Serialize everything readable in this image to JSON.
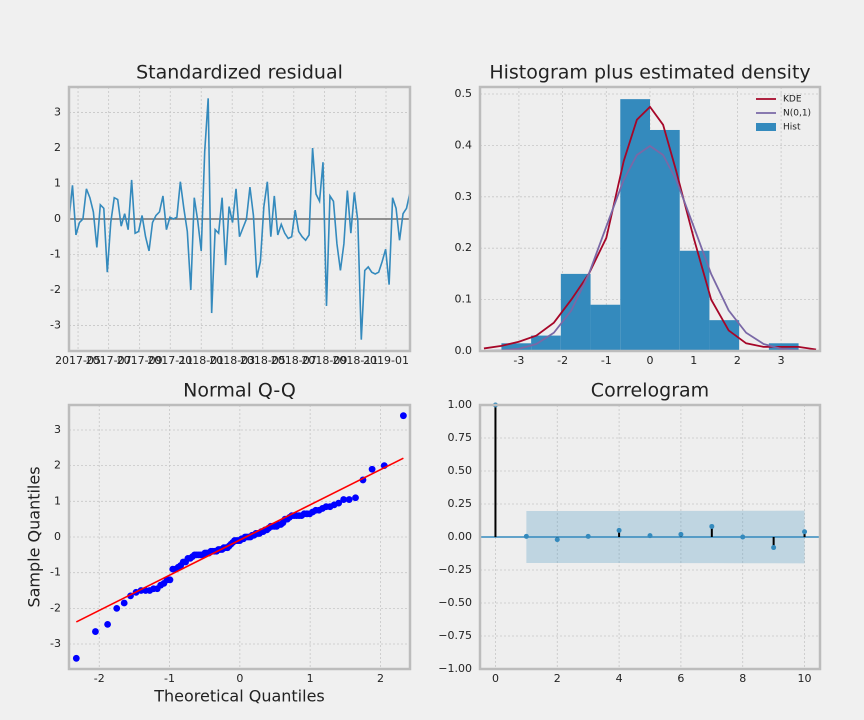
{
  "chart_data": [
    {
      "type": "line",
      "title": "Standardized residual",
      "color": "#348abd",
      "values": [
        0,
        0.95,
        -0.45,
        -0.1,
        0,
        0.85,
        0.6,
        0.2,
        -0.8,
        0.4,
        0.3,
        -1.5,
        -0.1,
        0.6,
        0.55,
        -0.2,
        0.15,
        -0.3,
        1.1,
        -0.4,
        -0.35,
        0.1,
        -0.5,
        -0.9,
        -0.1,
        0.1,
        0.2,
        0.65,
        -0.3,
        0.05,
        0,
        0.05,
        1.05,
        0.3,
        -0.35,
        -2.0,
        0.6,
        -0.05,
        -0.9,
        1.9,
        3.4,
        -2.65,
        -0.3,
        -0.4,
        0.6,
        -1.3,
        0.35,
        -0.1,
        0.85,
        -0.5,
        -0.25,
        0,
        0.9,
        0.1,
        -1.65,
        -1.2,
        0.35,
        1.05,
        -0.5,
        0.65,
        -0.45,
        -0.15,
        -0.4,
        -0.55,
        -0.5,
        0.25,
        -0.35,
        -0.5,
        -0.6,
        -0.45,
        2.0,
        0.7,
        0.5,
        1.6,
        -2.45,
        0.65,
        0.5,
        -0.7,
        -1.45,
        -0.7,
        0.8,
        -0.4,
        0.75,
        -0.05,
        -3.4,
        -1.45,
        -1.35,
        -1.5,
        -1.55,
        -1.5,
        -1.2,
        -0.85,
        -1.85,
        0.6,
        0.3,
        -0.6,
        0.15,
        0.3,
        0.75
      ],
      "xlim": [
        0,
        98
      ],
      "xticks": [
        {
          "value": 2.6,
          "label": "2017-05"
        },
        {
          "value": 11.4,
          "label": "2017-07"
        },
        {
          "value": 20.3,
          "label": "2017-09"
        },
        {
          "value": 29.1,
          "label": "2017-11"
        },
        {
          "value": 38,
          "label": "2018-01"
        },
        {
          "value": 46.9,
          "label": "2018-03"
        },
        {
          "value": 55.7,
          "label": "2018-05"
        },
        {
          "value": 64.6,
          "label": "2018-07"
        },
        {
          "value": 73.4,
          "label": "2018-09"
        },
        {
          "value": 82.3,
          "label": "2018-11"
        },
        {
          "value": 91.1,
          "label": "2019-01"
        }
      ],
      "ylim": [
        -3.72,
        3.72
      ],
      "yticks": [
        -3,
        -2,
        -1,
        0,
        1,
        2,
        3
      ],
      "grid": true
    },
    {
      "type": "histogram",
      "title": "Histogram plus estimated density",
      "name": "Hist",
      "color": "#348abd",
      "bins": [
        -3.4,
        -2.72,
        -2.04,
        -1.36,
        -0.68,
        0,
        0.68,
        1.36,
        2.04,
        2.72,
        3.4
      ],
      "values": [
        0.015,
        0.03,
        0.15,
        0.09,
        0.49,
        0.43,
        0.195,
        0.06,
        0,
        0.015
      ],
      "lines": {
        "x": [
          -3.8,
          -3.4,
          -3.0,
          -2.6,
          -2.2,
          -1.8,
          -1.4,
          -1.0,
          -0.6,
          -0.3,
          0,
          0.3,
          0.6,
          1.0,
          1.4,
          1.8,
          2.2,
          2.6,
          3.0,
          3.4,
          3.8
        ],
        "series": [
          {
            "name": "KDE",
            "color": "#a60628",
            "values": [
              0.005,
              0.01,
              0.018,
              0.03,
              0.055,
              0.1,
              0.15,
              0.22,
              0.37,
              0.45,
              0.475,
              0.44,
              0.35,
              0.22,
              0.1,
              0.04,
              0.015,
              0.008,
              0.008,
              0.008,
              0.003
            ]
          },
          {
            "name": "N(0,1)",
            "color": "#7a68a6",
            "values": [
              0.0003,
              0.0012,
              0.0044,
              0.0136,
              0.0355,
              0.079,
              0.1497,
              0.242,
              0.3332,
              0.3814,
              0.3989,
              0.3814,
              0.3332,
              0.242,
              0.1497,
              0.079,
              0.0355,
              0.0136,
              0.0044,
              0.0012,
              0.0003
            ]
          }
        ]
      },
      "legend": "upper right",
      "xlim": [
        -3.89,
        3.89
      ],
      "xticks": [
        -3,
        -2,
        -1,
        0,
        1,
        2,
        3
      ],
      "ylim": [
        0,
        0.5136
      ],
      "yticks": [
        {
          "value": 0,
          "label": "0.0"
        },
        {
          "value": 0.1,
          "label": "0.1"
        },
        {
          "value": 0.2,
          "label": "0.2"
        },
        {
          "value": 0.3,
          "label": "0.3"
        },
        {
          "value": 0.4,
          "label": "0.4"
        },
        {
          "value": 0.5,
          "label": "0.5"
        }
      ],
      "grid": true
    },
    {
      "type": "scatter",
      "title": "Normal Q-Q",
      "x_label": "Theoretical Quantiles",
      "y_label": "Sample Quantiles",
      "color": "#0000ff",
      "x": [
        -2.326,
        -2.054,
        -1.881,
        -1.751,
        -1.645,
        -1.555,
        -1.476,
        -1.405,
        -1.341,
        -1.282,
        -1.227,
        -1.175,
        -1.126,
        -1.08,
        -1.036,
        -0.994,
        -0.954,
        -0.915,
        -0.878,
        -0.842,
        -0.806,
        -0.772,
        -0.739,
        -0.706,
        -0.674,
        -0.643,
        -0.613,
        -0.583,
        -0.553,
        -0.524,
        -0.496,
        -0.468,
        -0.44,
        -0.412,
        -0.385,
        -0.358,
        -0.332,
        -0.305,
        -0.279,
        -0.253,
        -0.228,
        -0.202,
        -0.176,
        -0.151,
        -0.126,
        -0.1,
        -0.075,
        -0.05,
        -0.025,
        0,
        0.025,
        0.05,
        0.075,
        0.1,
        0.126,
        0.151,
        0.176,
        0.202,
        0.228,
        0.253,
        0.279,
        0.305,
        0.332,
        0.358,
        0.385,
        0.412,
        0.44,
        0.468,
        0.496,
        0.524,
        0.553,
        0.583,
        0.613,
        0.643,
        0.674,
        0.706,
        0.739,
        0.772,
        0.806,
        0.842,
        0.878,
        0.915,
        0.954,
        0.994,
        1.036,
        1.08,
        1.126,
        1.175,
        1.227,
        1.282,
        1.341,
        1.405,
        1.476,
        1.555,
        1.645,
        1.751,
        1.881,
        2.054,
        2.326
      ],
      "values": [
        -3.4,
        -2.65,
        -2.45,
        -2.0,
        -1.85,
        -1.65,
        -1.55,
        -1.5,
        -1.5,
        -1.5,
        -1.45,
        -1.45,
        -1.35,
        -1.3,
        -1.2,
        -1.2,
        -0.9,
        -0.9,
        -0.85,
        -0.8,
        -0.7,
        -0.7,
        -0.6,
        -0.6,
        -0.55,
        -0.5,
        -0.5,
        -0.5,
        -0.5,
        -0.5,
        -0.45,
        -0.45,
        -0.45,
        -0.4,
        -0.4,
        -0.4,
        -0.4,
        -0.35,
        -0.35,
        -0.35,
        -0.3,
        -0.3,
        -0.3,
        -0.25,
        -0.2,
        -0.15,
        -0.1,
        -0.1,
        -0.1,
        -0.1,
        -0.05,
        -0.05,
        0,
        0,
        0,
        0,
        0.05,
        0.05,
        0.1,
        0.1,
        0.1,
        0.15,
        0.15,
        0.2,
        0.2,
        0.25,
        0.3,
        0.3,
        0.3,
        0.3,
        0.35,
        0.35,
        0.4,
        0.5,
        0.5,
        0.55,
        0.6,
        0.6,
        0.6,
        0.6,
        0.6,
        0.65,
        0.65,
        0.65,
        0.7,
        0.75,
        0.75,
        0.8,
        0.85,
        0.85,
        0.9,
        0.95,
        1.05,
        1.05,
        1.1,
        1.6,
        1.9,
        2.0,
        3.4
      ],
      "line": {
        "x": [
          -2.326,
          2.326
        ],
        "values": [
          -2.38,
          2.21
        ],
        "color": "#ff0000"
      },
      "xlim": [
        -2.43,
        2.42
      ],
      "xticks": [
        -2,
        -1,
        0,
        1,
        2
      ],
      "ylim": [
        -3.7,
        3.7
      ],
      "yticks": [
        -3,
        -2,
        -1,
        0,
        1,
        2,
        3
      ],
      "grid": true
    },
    {
      "type": "stem",
      "title": "Correlogram",
      "color": "#348abd",
      "stem_color": "#000000",
      "x": [
        0,
        1,
        2,
        3,
        4,
        5,
        6,
        7,
        8,
        9,
        10
      ],
      "values": [
        1.0,
        0.005,
        -0.02,
        0.005,
        0.05,
        0.01,
        0.02,
        0.08,
        0.0,
        -0.08,
        0.04
      ],
      "band": {
        "x": [
          1,
          2,
          3,
          4,
          5,
          6,
          7,
          8,
          9,
          10
        ],
        "upper": [
          0.197,
          0.197,
          0.197,
          0.197,
          0.198,
          0.198,
          0.198,
          0.199,
          0.199,
          0.2
        ],
        "lower": [
          -0.197,
          -0.197,
          -0.197,
          -0.197,
          -0.198,
          -0.198,
          -0.198,
          -0.199,
          -0.199,
          -0.2
        ]
      },
      "xlim": [
        -0.5,
        10.5
      ],
      "xticks": [
        0,
        2,
        4,
        6,
        8,
        10
      ],
      "ylim": [
        -1.0,
        1.0
      ],
      "yticks": [
        {
          "value": -1,
          "label": "−1.00"
        },
        {
          "value": -0.75,
          "label": "−0.75"
        },
        {
          "value": -0.5,
          "label": "−0.50"
        },
        {
          "value": -0.25,
          "label": "−0.25"
        },
        {
          "value": 0,
          "label": "0.00"
        },
        {
          "value": 0.25,
          "label": "0.25"
        },
        {
          "value": 0.5,
          "label": "0.50"
        },
        {
          "value": 0.75,
          "label": "0.75"
        },
        {
          "value": 1,
          "label": "1.00"
        }
      ],
      "grid": true
    }
  ]
}
